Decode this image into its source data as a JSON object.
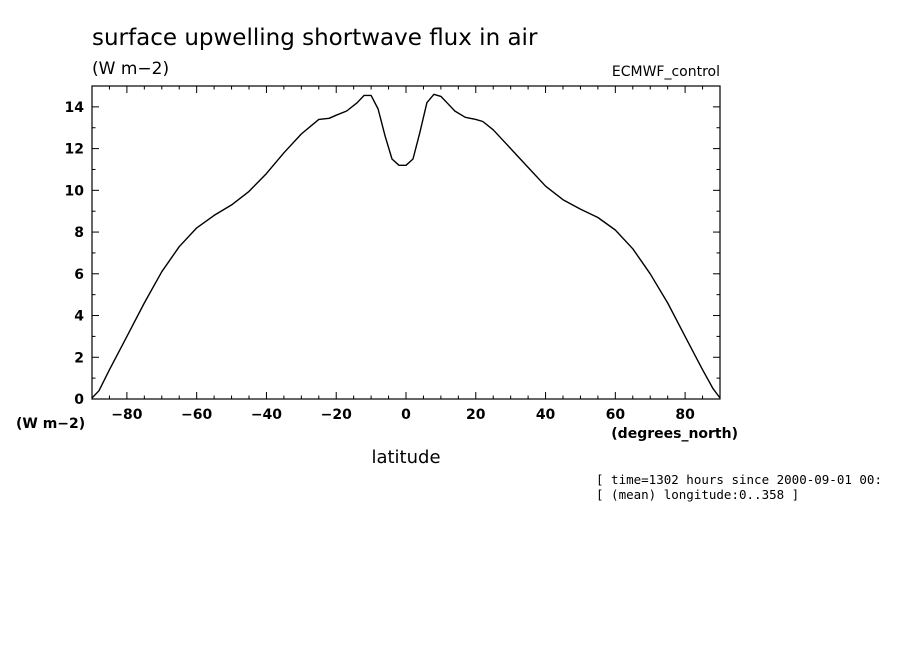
{
  "chart_data": {
    "type": "line",
    "title": "surface upwelling shortwave flux in air",
    "units_label": "(W m−2)",
    "dataset_label": "ECMWF_control",
    "xlabel": "latitude",
    "x_units_label": "(degrees_north)",
    "y_units_label": "(W m−2)",
    "xlim": [
      -90,
      90
    ],
    "ylim": [
      0,
      15
    ],
    "xticks": [
      -80,
      -60,
      -40,
      -20,
      0,
      20,
      40,
      60,
      80
    ],
    "yticks": [
      0,
      2,
      4,
      6,
      8,
      10,
      12,
      14
    ],
    "grid": false,
    "series": [
      {
        "x": [
          -90,
          -88,
          -85,
          -80,
          -75,
          -70,
          -65,
          -60,
          -55,
          -50,
          -45,
          -40,
          -35,
          -30,
          -25,
          -22,
          -20,
          -17,
          -14,
          -12,
          -10,
          -8,
          -6,
          -4,
          -2,
          0,
          2,
          4,
          6,
          8,
          10,
          12,
          14,
          17,
          20,
          22,
          25,
          30,
          35,
          40,
          45,
          50,
          55,
          60,
          65,
          70,
          75,
          80,
          85,
          88,
          90
        ],
        "y": [
          0.05,
          0.4,
          1.4,
          3.0,
          4.6,
          6.1,
          7.3,
          8.2,
          8.8,
          9.3,
          9.95,
          10.8,
          11.8,
          12.7,
          13.4,
          13.45,
          13.6,
          13.8,
          14.2,
          14.55,
          14.55,
          13.9,
          12.6,
          11.5,
          11.2,
          11.2,
          11.5,
          12.8,
          14.2,
          14.6,
          14.5,
          14.15,
          13.8,
          13.5,
          13.4,
          13.3,
          12.9,
          12.0,
          11.1,
          10.2,
          9.55,
          9.1,
          8.7,
          8.1,
          7.2,
          6.0,
          4.6,
          3.0,
          1.4,
          0.5,
          0.05
        ]
      }
    ]
  },
  "meta_lines": [
    "[ time=1302 hours since 2000-09-01 00:",
    "[ (mean) longitude:0..358 ]"
  ]
}
